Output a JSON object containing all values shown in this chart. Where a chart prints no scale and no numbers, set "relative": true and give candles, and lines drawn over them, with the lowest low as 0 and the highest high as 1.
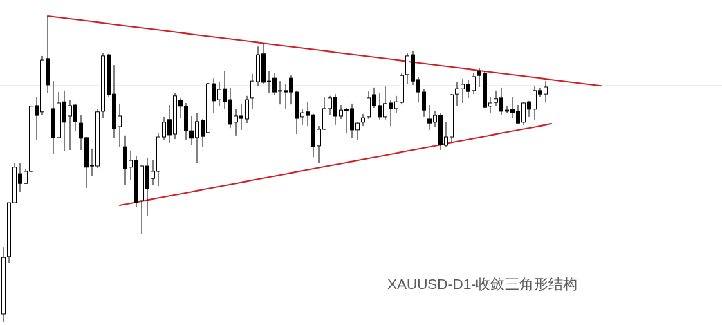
{
  "chart_data": {
    "type": "candlestick",
    "title": "XAUUSD-D1-收敛三角形结构",
    "relative": true,
    "categories": [
      null,
      null,
      null,
      null,
      null,
      null,
      null,
      null,
      null,
      null,
      null,
      null,
      null,
      null,
      null,
      null,
      null,
      null,
      null,
      null,
      null,
      null,
      null,
      null,
      null,
      null,
      null,
      null,
      null,
      null,
      null,
      null,
      null,
      null,
      null,
      null,
      null,
      null,
      null,
      null,
      null,
      null,
      null,
      null,
      null,
      null,
      null,
      null,
      null,
      null,
      null,
      null,
      null,
      null,
      null,
      null,
      null,
      null,
      null,
      null,
      null,
      null,
      null,
      null,
      null,
      null,
      null,
      null,
      null,
      null,
      null,
      null,
      null,
      null,
      null,
      null,
      null,
      null,
      null,
      null,
      null,
      null,
      null,
      null,
      null,
      null,
      null,
      null,
      null,
      null,
      null,
      null,
      null,
      null,
      null,
      null,
      null,
      null,
      null,
      null,
      null,
      null,
      null,
      null,
      null,
      null,
      null,
      null,
      null,
      null
    ],
    "ohlc": [
      [
        0.025,
        0.244,
        0,
        0.21
      ],
      [
        0.213,
        0.389,
        0.192,
        0.389
      ],
      [
        0.389,
        0.52,
        0.389,
        0.505
      ],
      [
        0.484,
        0.52,
        0.423,
        0.452
      ],
      [
        0.452,
        0.498,
        0.45,
        0.491
      ],
      [
        0.491,
        0.704,
        0.489,
        0.704
      ],
      [
        0.706,
        0.733,
        0.593,
        0.674
      ],
      [
        0.686,
        0.869,
        0.676,
        0.855
      ],
      [
        0.86,
        1,
        0.747,
        0.774
      ],
      [
        0.697,
        0.787,
        0.548,
        0.602
      ],
      [
        0.602,
        0.751,
        0.602,
        0.715
      ],
      [
        0.719,
        0.756,
        0.557,
        0.652
      ],
      [
        0.672,
        0.724,
        0.561,
        0.706
      ],
      [
        0.708,
        0.713,
        0.622,
        0.654
      ],
      [
        0.649,
        0.674,
        0.561,
        0.6
      ],
      [
        0.602,
        0.604,
        0.437,
        0.505
      ],
      [
        0.511,
        0.566,
        0.475,
        0.511
      ],
      [
        0.509,
        0.695,
        0.502,
        0.686
      ],
      [
        0.688,
        0.878,
        0.665,
        0.869
      ],
      [
        0.873,
        0.876,
        0.735,
        0.742
      ],
      [
        0.744,
        0.839,
        0.6,
        0.631
      ],
      [
        0.638,
        0.713,
        0.572,
        0.672
      ],
      [
        0.572,
        0.609,
        0.448,
        0.5
      ],
      [
        0.505,
        0.559,
        0.464,
        0.527
      ],
      [
        0.527,
        0.543,
        0.373,
        0.389
      ],
      [
        0.396,
        0.511,
        0.285,
        0.509
      ],
      [
        0.509,
        0.534,
        0.346,
        0.434
      ],
      [
        0.468,
        0.529,
        0.446,
        0.491
      ],
      [
        0.491,
        0.615,
        0.443,
        0.604
      ],
      [
        0.604,
        0.67,
        0.595,
        0.652
      ],
      [
        0.661,
        0.708,
        0.584,
        0.611
      ],
      [
        0.613,
        0.747,
        0.597,
        0.738
      ],
      [
        0.724,
        0.731,
        0.665,
        0.704
      ],
      [
        0.704,
        0.715,
        0.593,
        0.624
      ],
      [
        0.624,
        0.672,
        0.579,
        0.6
      ],
      [
        0.602,
        0.681,
        0.518,
        0.654
      ],
      [
        0.658,
        0.663,
        0.57,
        0.606
      ],
      [
        0.618,
        0.781,
        0.615,
        0.778
      ],
      [
        0.778,
        0.796,
        0.683,
        0.722
      ],
      [
        0.726,
        0.783,
        0.706,
        0.76
      ],
      [
        0.762,
        0.819,
        0.697,
        0.719
      ],
      [
        0.726,
        0.765,
        0.633,
        0.645
      ],
      [
        0.652,
        0.695,
        0.609,
        0.672
      ],
      [
        0.672,
        0.713,
        0.627,
        0.665
      ],
      [
        0.663,
        0.738,
        0.649,
        0.726
      ],
      [
        0.731,
        0.81,
        0.695,
        0.787
      ],
      [
        0.785,
        0.9,
        0.771,
        0.873
      ],
      [
        0.876,
        0.91,
        0.776,
        0.783
      ],
      [
        0.785,
        0.819,
        0.747,
        0.787
      ],
      [
        0.796,
        0.812,
        0.74,
        0.751
      ],
      [
        0.756,
        0.787,
        0.71,
        0.756
      ],
      [
        0.756,
        0.776,
        0.697,
        0.751
      ],
      [
        0.796,
        0.805,
        0.71,
        0.751
      ],
      [
        0.751,
        0.756,
        0.613,
        0.665
      ],
      [
        0.67,
        0.695,
        0.643,
        0.683
      ],
      [
        0.686,
        0.717,
        0.64,
        0.674
      ],
      [
        0.676,
        0.679,
        0.538,
        0.572
      ],
      [
        0.575,
        0.64,
        0.52,
        0.629
      ],
      [
        0.629,
        0.733,
        0.627,
        0.697
      ],
      [
        0.697,
        0.738,
        0.674,
        0.731
      ],
      [
        0.733,
        0.744,
        0.643,
        0.672
      ],
      [
        0.672,
        0.708,
        0.663,
        0.692
      ],
      [
        0.695,
        0.699,
        0.615,
        0.69
      ],
      [
        0.697,
        0.713,
        0.6,
        0.627
      ],
      [
        0.627,
        0.654,
        0.593,
        0.649
      ],
      [
        0.652,
        0.679,
        0.64,
        0.667
      ],
      [
        0.67,
        0.753,
        0.663,
        0.731
      ],
      [
        0.742,
        0.765,
        0.699,
        0.706
      ],
      [
        0.706,
        0.749,
        0.661,
        0.67
      ],
      [
        0.67,
        0.769,
        0.661,
        0.713
      ],
      [
        0.715,
        0.724,
        0.64,
        0.697
      ],
      [
        0.697,
        0.738,
        0.683,
        0.719
      ],
      [
        0.717,
        0.814,
        0.71,
        0.805
      ],
      [
        0.808,
        0.878,
        0.778,
        0.869
      ],
      [
        0.873,
        0.885,
        0.774,
        0.787
      ],
      [
        0.792,
        0.799,
        0.717,
        0.751
      ],
      [
        0.751,
        0.762,
        0.67,
        0.692
      ],
      [
        0.663,
        0.708,
        0.627,
        0.649
      ],
      [
        0.652,
        0.69,
        0.636,
        0.674
      ],
      [
        0.674,
        0.683,
        0.561,
        0.579
      ],
      [
        0.577,
        0.652,
        0.572,
        0.604
      ],
      [
        0.604,
        0.744,
        0.586,
        0.742
      ],
      [
        0.744,
        0.785,
        0.706,
        0.762
      ],
      [
        0.762,
        0.794,
        0.715,
        0.776
      ],
      [
        0.776,
        0.79,
        0.731,
        0.753
      ],
      [
        0.756,
        0.814,
        0.744,
        0.801
      ],
      [
        0.819,
        0.828,
        0.767,
        0.805
      ],
      [
        0.812,
        0.819,
        0.699,
        0.701
      ],
      [
        0.704,
        0.735,
        0.681,
        0.715
      ],
      [
        0.717,
        0.756,
        0.704,
        0.729
      ],
      [
        0.731,
        0.765,
        0.676,
        0.688
      ],
      [
        0.692,
        0.706,
        0.683,
        0.688
      ],
      [
        0.695,
        0.733,
        0.665,
        0.683
      ],
      [
        0.688,
        0.708,
        0.647,
        0.649
      ],
      [
        0.652,
        0.717,
        0.643,
        0.715
      ],
      [
        0.719,
        0.722,
        0.67,
        0.695
      ],
      [
        0.695,
        0.771,
        0.661,
        0.756
      ],
      [
        0.756,
        0.765,
        0.733,
        0.744
      ],
      [
        0.744,
        0.787,
        0.717,
        0.767
      ],
      null,
      null,
      null,
      null,
      null,
      null,
      null,
      null,
      null,
      null,
      null
    ],
    "series": [
      {
        "type": "line",
        "color": "#cc1f26",
        "values": [
          null,
          null,
          null,
          null,
          null,
          null,
          null,
          null,
          1,
          null,
          null,
          null,
          null,
          null,
          null,
          null,
          null,
          null,
          null,
          null,
          null,
          null,
          null,
          null,
          null,
          null,
          null,
          null,
          null,
          null,
          null,
          null,
          null,
          null,
          null,
          null,
          null,
          null,
          null,
          null,
          null,
          null,
          null,
          null,
          null,
          null,
          null,
          null,
          null,
          null,
          null,
          null,
          null,
          null,
          null,
          null,
          null,
          null,
          null,
          null,
          null,
          null,
          null,
          null,
          null,
          null,
          null,
          null,
          null,
          null,
          null,
          null,
          null,
          null,
          null,
          null,
          null,
          null,
          null,
          null,
          null,
          null,
          null,
          null,
          null,
          null,
          null,
          null,
          null,
          null,
          null,
          null,
          null,
          null,
          null,
          null,
          null,
          null,
          null,
          null,
          null,
          null,
          null,
          null,
          null,
          null,
          null,
          null,
          0.771,
          null
        ]
      },
      {
        "type": "line",
        "color": "#cc1f26",
        "values": [
          null,
          null,
          null,
          null,
          null,
          null,
          null,
          null,
          null,
          null,
          null,
          null,
          null,
          null,
          null,
          null,
          null,
          null,
          null,
          null,
          null,
          0.38,
          null,
          null,
          null,
          null,
          null,
          null,
          null,
          null,
          null,
          null,
          null,
          null,
          null,
          null,
          null,
          null,
          null,
          null,
          null,
          null,
          null,
          null,
          null,
          null,
          null,
          null,
          null,
          null,
          null,
          null,
          null,
          null,
          null,
          null,
          null,
          null,
          null,
          null,
          null,
          null,
          null,
          null,
          null,
          null,
          null,
          null,
          null,
          null,
          null,
          null,
          null,
          null,
          null,
          null,
          null,
          null,
          null,
          null,
          null,
          null,
          null,
          null,
          null,
          null,
          null,
          null,
          null,
          null,
          null,
          null,
          null,
          null,
          null,
          null,
          null,
          null,
          null,
          0.647,
          null,
          null,
          null,
          null,
          null,
          null,
          null,
          null,
          null,
          null
        ]
      }
    ],
    "ref_lines": [
      {
        "axis": "y",
        "value": 0.771,
        "color": "#c4c4c4"
      }
    ]
  }
}
